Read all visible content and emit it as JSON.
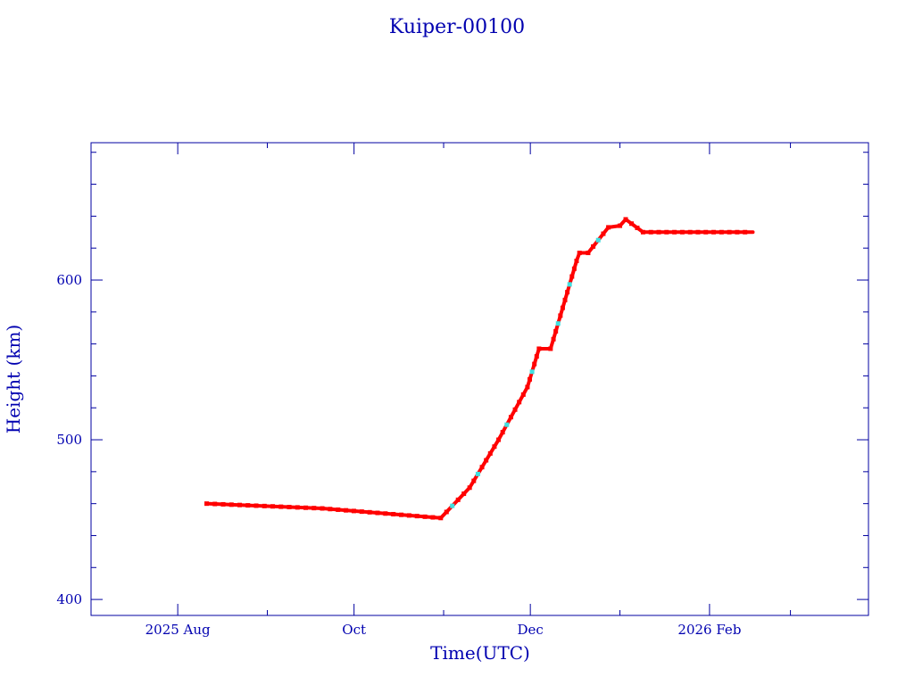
{
  "chart_data": {
    "type": "line",
    "title": "Kuiper-00100",
    "xlabel": "Time(UTC)",
    "ylabel": "Height (km)",
    "xlim": [
      "2025-07-02",
      "2026-03-28"
    ],
    "ylim": [
      390,
      686
    ],
    "x_ticks": [
      {
        "date": "2025-08-01",
        "label": "2025 Aug"
      },
      {
        "date": "2025-10-01",
        "label": "Oct"
      },
      {
        "date": "2025-12-01",
        "label": "Dec"
      },
      {
        "date": "2026-02-01",
        "label": "2026 Feb"
      }
    ],
    "x_minor_ticks": [
      "2025-09-01",
      "2025-11-01",
      "2026-01-01",
      "2026-03-01"
    ],
    "y_ticks": [
      400,
      500,
      600
    ],
    "y_minor_step": 20,
    "grid": false,
    "series": [
      {
        "color": "#ff0000",
        "secondary_color": "#40e0e0",
        "points": [
          [
            "2025-08-11",
            460
          ],
          [
            "2025-09-20",
            457
          ],
          [
            "2025-10-31",
            451
          ],
          [
            "2025-11-10",
            470
          ],
          [
            "2025-11-20",
            500
          ],
          [
            "2025-11-30",
            533
          ],
          [
            "2025-12-04",
            557
          ],
          [
            "2025-12-08",
            557
          ],
          [
            "2025-12-09",
            563
          ],
          [
            "2025-12-17",
            612
          ],
          [
            "2025-12-18",
            617
          ],
          [
            "2025-12-21",
            617
          ],
          [
            "2025-12-28",
            633
          ],
          [
            "2026-01-01",
            634
          ],
          [
            "2026-01-03",
            638
          ],
          [
            "2026-01-09",
            630
          ],
          [
            "2026-02-16",
            630
          ]
        ]
      }
    ]
  }
}
